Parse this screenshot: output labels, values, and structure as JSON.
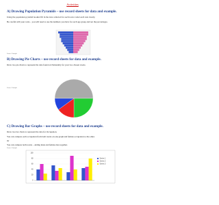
{
  "title": "Activities",
  "sections": [
    {
      "heading": "A) Drawing Population Pyramids – use record sheets for data and example.",
      "paragraphs": [
        "Using the population pyramid booklet fill in the data collected for each town. Label each axis clearly.",
        "Be careful with your scale – you will need to use the numbers you have for each age group and not the percentages."
      ],
      "caption": "Source: Example",
      "pyramid": {
        "male": [
          3,
          4,
          5,
          6,
          7,
          8,
          8,
          9,
          9,
          10
        ],
        "female": [
          3,
          4,
          5,
          6,
          7,
          8,
          9,
          9,
          10,
          10
        ],
        "male_color": "#3355cc",
        "female_color": "#dd66aa"
      }
    },
    {
      "heading": "B) Drawing Pie Charts – use record sheets for data and example.",
      "paragraphs": [
        "Draw two pie charts to represent the data found on Nationality for your two chosen towns."
      ],
      "caption": "Source: Example",
      "pie": {
        "values": [
          50,
          25,
          15,
          10
        ],
        "colors": [
          "#aaaaaa",
          "#22cc33",
          "#ee2222",
          "#2244dd"
        ]
      }
    },
    {
      "heading": "C) Drawing Bar Graphs – use record sheets for data and example.",
      "paragraphs": [
        "Draw two bar charts to represent the data for Occupation.",
        "You can compare each occupation from both towns on one graph and female occupation to the other.",
        "Or",
        "You can compare both towns – adding male and female data together."
      ],
      "caption": "Source: Example",
      "bar": {
        "categories": [
          null,
          null,
          null,
          null
        ],
        "ylim": [
          0,
          100
        ],
        "yticks": [
          0,
          20,
          40,
          60,
          80,
          100
        ],
        "series": [
          {
            "name": "Series 1",
            "color": "#3355cc",
            "values": [
              40,
              55,
              30,
              45
            ]
          },
          {
            "name": "Series 2",
            "color": "#dd33cc",
            "values": [
              60,
              35,
              90,
              50
            ]
          },
          {
            "name": "Series 3",
            "color": "#ffee00",
            "values": [
              25,
              45,
              40,
              80
            ]
          }
        ]
      }
    }
  ]
}
